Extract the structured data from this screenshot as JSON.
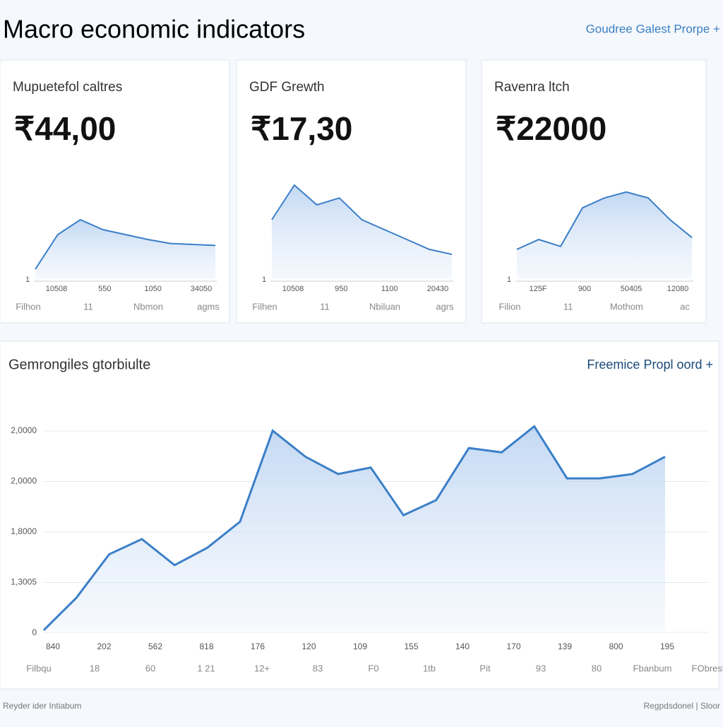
{
  "header": {
    "title": "Macro economic indicators",
    "link": "Goudree Galest Prorpe +"
  },
  "cards": [
    {
      "title": "Mupuetefol caltres",
      "value": "₹44,00",
      "y_label": "1",
      "x_labels": [
        "10508",
        "550",
        "1050",
        "34050"
      ],
      "bottom_labels": [
        "Filhon",
        "11",
        "Nbmon",
        "agms"
      ],
      "ylim": [
        0,
        100
      ],
      "values": [
        10,
        45,
        60,
        50,
        45,
        40,
        36,
        35,
        34
      ]
    },
    {
      "title": "GDF Grewth",
      "value": "₹17,30",
      "y_label": "1",
      "x_labels": [
        "10508",
        "950",
        "1100",
        "20430"
      ],
      "bottom_labels": [
        "Filhen",
        "11",
        "Nbiluan",
        "agrs"
      ],
      "ylim": [
        0,
        100
      ],
      "values": [
        60,
        95,
        75,
        82,
        60,
        50,
        40,
        30,
        25
      ]
    },
    {
      "title": "Ravenra ltch",
      "value": "₹22000",
      "y_label": "1",
      "x_labels": [
        "125F",
        "900",
        "50405",
        "12080"
      ],
      "bottom_labels": [
        "Filion",
        "11",
        "Mothom",
        "ac"
      ],
      "ylim": [
        0,
        100
      ],
      "values": [
        30,
        40,
        33,
        72,
        82,
        88,
        82,
        60,
        42
      ]
    }
  ],
  "main": {
    "title": "Gemrongiles gtorbiulte",
    "link": "Freemice Propl oord +",
    "y_labels": [
      "2,0000",
      "2,0000",
      "1,8000",
      "1,3005",
      "0"
    ],
    "x_labels": [
      "840",
      "202",
      "562",
      "818",
      "176",
      "120",
      "109",
      "155",
      "140",
      "170",
      "139",
      "800",
      "195"
    ],
    "bottom_labels": [
      "Filbqu",
      "18",
      "60",
      "1 21",
      "12+",
      "83",
      "F0",
      "1tb",
      "Pit",
      "93",
      "80",
      "Fbanbum",
      "FObrest"
    ],
    "ylim": [
      0,
      100
    ],
    "values": [
      0,
      15,
      35,
      42,
      30,
      38,
      50,
      92,
      80,
      72,
      75,
      53,
      60,
      84,
      82,
      94,
      70,
      70,
      72,
      80
    ]
  },
  "footer": {
    "left": "Reyder ider Intiabum",
    "right": "Regpdsdonel | Sloor"
  }
}
